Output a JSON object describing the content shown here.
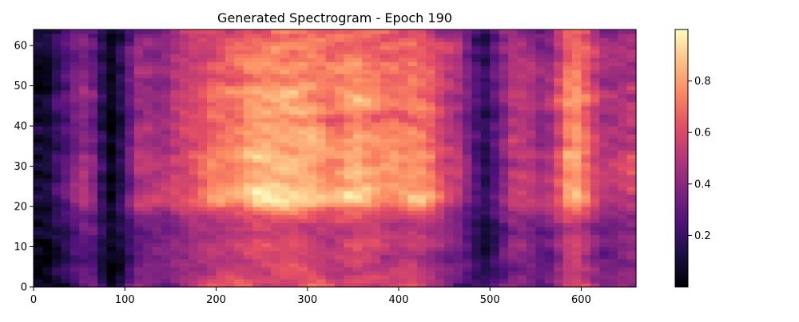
{
  "chart_data": {
    "type": "heatmap",
    "title": "Generated Spectrogram - Epoch 190",
    "xlabel": "",
    "ylabel": "",
    "xlim": [
      0,
      660
    ],
    "ylim": [
      0,
      64
    ],
    "x_ticks": [
      0,
      100,
      200,
      300,
      400,
      500,
      600
    ],
    "y_ticks": [
      0,
      10,
      20,
      30,
      40,
      50,
      60
    ],
    "colormap": "magma",
    "colorbar": {
      "range": [
        0,
        1
      ],
      "ticks": [
        0.2,
        0.4,
        0.6,
        0.8
      ]
    },
    "grid": false,
    "shape": {
      "rows": 64,
      "cols": 66
    },
    "values_note": "",
    "col_profile": [
      0.05,
      0.1,
      0.12,
      0.45,
      0.3,
      0.55,
      0.6,
      0.05,
      0.02,
      0.1,
      0.4,
      0.55,
      0.6,
      0.45,
      0.55,
      0.6,
      0.7,
      0.7,
      0.75,
      0.8,
      0.85,
      0.8,
      0.85,
      0.9,
      0.95,
      0.95,
      0.95,
      0.95,
      0.95,
      0.9,
      0.95,
      0.9,
      0.85,
      0.85,
      0.95,
      0.95,
      0.9,
      0.8,
      0.85,
      0.8,
      0.85,
      0.85,
      0.9,
      0.75,
      0.7,
      0.6,
      0.55,
      0.55,
      0.1,
      0.2,
      0.25,
      0.5,
      0.6,
      0.65,
      0.55,
      0.55,
      0.45,
      0.7,
      0.9,
      0.95,
      0.8,
      0.6,
      0.55,
      0.55,
      0.6,
      0.6
    ],
    "row_profile": [
      0.55,
      0.6,
      0.55,
      0.5,
      0.55,
      0.55,
      0.5,
      0.5,
      0.55,
      0.55,
      0.55,
      0.55,
      0.5,
      0.55,
      0.5,
      0.55,
      0.55,
      0.6,
      0.65,
      0.7,
      0.8,
      0.85,
      0.85,
      0.85,
      0.85,
      0.8,
      0.8,
      0.75,
      0.8,
      0.8,
      0.75,
      0.8,
      0.8,
      0.8,
      0.75,
      0.75,
      0.75,
      0.75,
      0.75,
      0.75,
      0.7,
      0.7,
      0.7,
      0.75,
      0.75,
      0.75,
      0.75,
      0.75,
      0.75,
      0.75,
      0.7,
      0.7,
      0.7,
      0.7,
      0.75,
      0.7,
      0.7,
      0.65,
      0.7,
      0.7,
      0.7,
      0.65,
      0.65,
      0.65
    ],
    "seed": 190
  }
}
